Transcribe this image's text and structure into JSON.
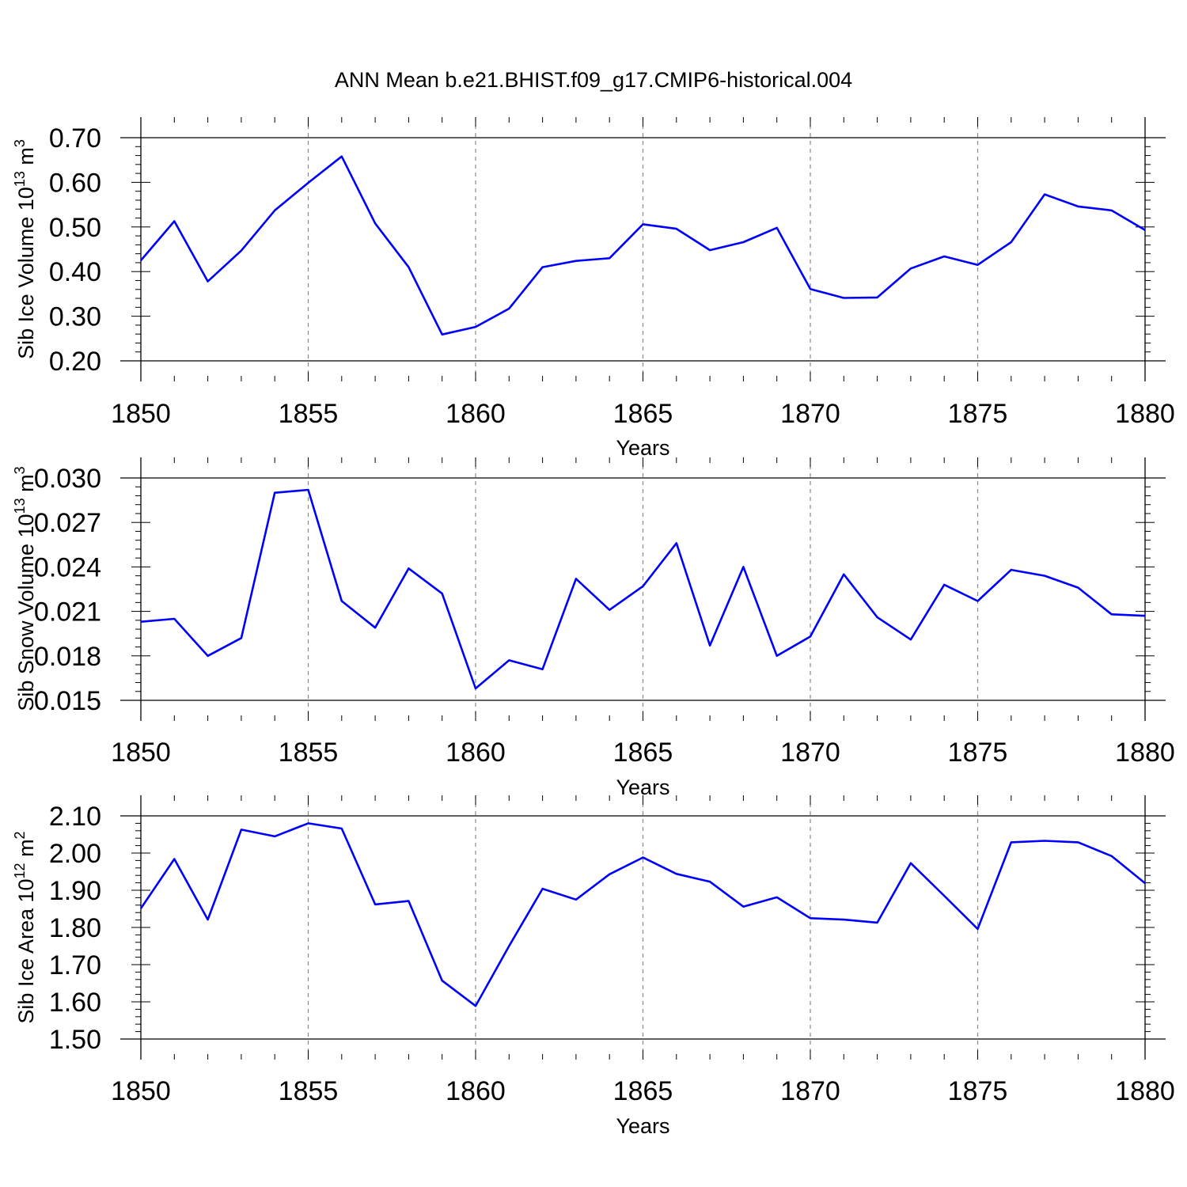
{
  "title": "ANN Mean b.e21.BHIST.f09_g17.CMIP6-historical.004",
  "line_color": "#0000ff",
  "chart_data": [
    {
      "type": "line",
      "title": "ANN Mean b.e21.BHIST.f09_g17.CMIP6-historical.004",
      "ylabel": {
        "text": "Sib Ice Volume 10",
        "exp": "13",
        "unit": " m",
        "unit_exp": "3"
      },
      "xlabel": "Years",
      "xlim": [
        1850,
        1880
      ],
      "ylim": [
        0.2,
        0.7
      ],
      "xticks": [
        "1850",
        "1855",
        "1860",
        "1865",
        "1870",
        "1875",
        "1880"
      ],
      "yticks": [
        "0.20",
        "0.30",
        "0.40",
        "0.50",
        "0.60",
        "0.70"
      ],
      "x": [
        1850,
        1851,
        1852,
        1853,
        1854,
        1855,
        1856,
        1857,
        1858,
        1859,
        1860,
        1861,
        1862,
        1863,
        1864,
        1865,
        1866,
        1867,
        1868,
        1869,
        1870,
        1871,
        1872,
        1873,
        1874,
        1875,
        1876,
        1877,
        1878,
        1879,
        1880
      ],
      "values": [
        0.425,
        0.513,
        0.378,
        0.447,
        0.537,
        0.599,
        0.658,
        0.508,
        0.41,
        0.259,
        0.276,
        0.317,
        0.41,
        0.424,
        0.43,
        0.506,
        0.496,
        0.448,
        0.466,
        0.498,
        0.361,
        0.341,
        0.342,
        0.407,
        0.434,
        0.415,
        0.466,
        0.573,
        0.546,
        0.537,
        0.493
      ],
      "grid": "dashed vertical at major x ticks"
    },
    {
      "type": "line",
      "ylabel": {
        "text": "Sib Snow Volume 10",
        "exp": "13",
        "unit": " m",
        "unit_exp": "3"
      },
      "xlabel": "Years",
      "xlim": [
        1850,
        1880
      ],
      "ylim": [
        0.015,
        0.03
      ],
      "xticks": [
        "1850",
        "1855",
        "1860",
        "1865",
        "1870",
        "1875",
        "1880"
      ],
      "yticks": [
        "0.015",
        "0.018",
        "0.021",
        "0.024",
        "0.027",
        "0.030"
      ],
      "x": [
        1850,
        1851,
        1852,
        1853,
        1854,
        1855,
        1856,
        1857,
        1858,
        1859,
        1860,
        1861,
        1862,
        1863,
        1864,
        1865,
        1866,
        1867,
        1868,
        1869,
        1870,
        1871,
        1872,
        1873,
        1874,
        1875,
        1876,
        1877,
        1878,
        1879,
        1880
      ],
      "values": [
        0.0203,
        0.0205,
        0.018,
        0.0192,
        0.029,
        0.0292,
        0.0217,
        0.0199,
        0.0239,
        0.0222,
        0.0158,
        0.0177,
        0.0171,
        0.0232,
        0.0211,
        0.0227,
        0.0256,
        0.0187,
        0.024,
        0.018,
        0.0193,
        0.0235,
        0.0206,
        0.0191,
        0.0228,
        0.0217,
        0.0238,
        0.0234,
        0.0226,
        0.0208,
        0.0207
      ],
      "grid": "dashed vertical at major x ticks"
    },
    {
      "type": "line",
      "ylabel": {
        "text": "Sib Ice Area 10",
        "exp": "12",
        "unit": " m",
        "unit_exp": "2"
      },
      "xlabel": "Years",
      "xlim": [
        1850,
        1880
      ],
      "ylim": [
        1.5,
        2.1
      ],
      "xticks": [
        "1850",
        "1855",
        "1860",
        "1865",
        "1870",
        "1875",
        "1880"
      ],
      "yticks": [
        "1.50",
        "1.60",
        "1.70",
        "1.80",
        "1.90",
        "2.00",
        "2.10"
      ],
      "x": [
        1850,
        1851,
        1852,
        1853,
        1854,
        1855,
        1856,
        1857,
        1858,
        1859,
        1860,
        1861,
        1862,
        1863,
        1864,
        1865,
        1866,
        1867,
        1868,
        1869,
        1870,
        1871,
        1872,
        1873,
        1874,
        1875,
        1876,
        1877,
        1878,
        1879,
        1880
      ],
      "values": [
        1.851,
        1.984,
        1.821,
        2.063,
        2.045,
        2.08,
        2.066,
        1.862,
        1.871,
        1.657,
        1.589,
        1.75,
        1.904,
        1.875,
        1.943,
        1.988,
        1.944,
        1.923,
        1.856,
        1.881,
        1.825,
        1.821,
        1.813,
        1.973,
        1.885,
        1.796,
        2.029,
        2.033,
        2.029,
        1.992,
        1.919
      ],
      "grid": "dashed vertical at major x ticks"
    }
  ]
}
